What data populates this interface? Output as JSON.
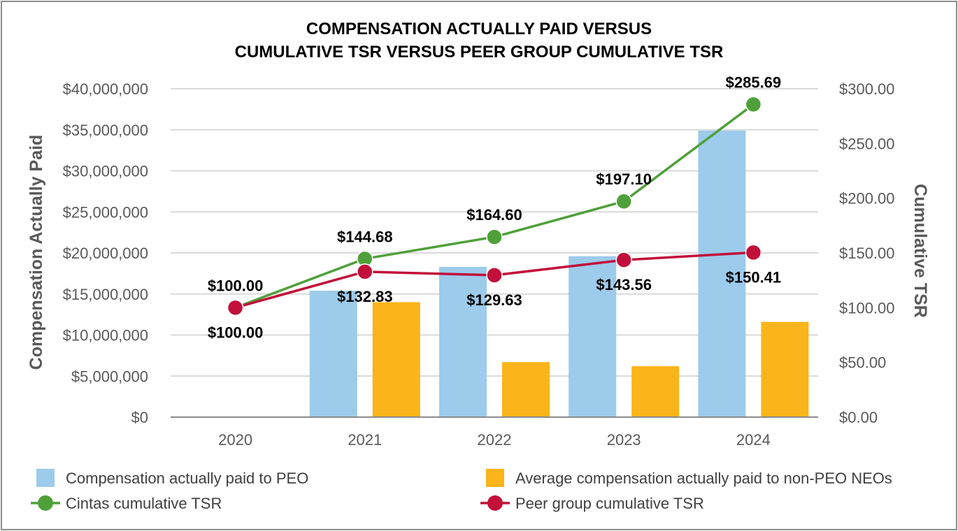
{
  "chart_data": {
    "type": "bar",
    "title_lines": [
      "COMPENSATION ACTUALLY PAID VERSUS",
      "CUMULATIVE TSR VERSUS PEER GROUP CUMULATIVE TSR"
    ],
    "categories": [
      "2020",
      "2021",
      "2022",
      "2023",
      "2024"
    ],
    "ylabel": "Compensation Actually Paid",
    "y2label": "Cumulative TSR",
    "ylim": [
      0,
      40000000
    ],
    "y2lim": [
      0,
      300
    ],
    "y_ticks": [
      0,
      5000000,
      10000000,
      15000000,
      20000000,
      25000000,
      30000000,
      35000000,
      40000000
    ],
    "y_tick_labels": [
      "$0",
      "$5,000,000",
      "$10,000,000",
      "$15,000,000",
      "$20,000,000",
      "$25,000,000",
      "$30,000,000",
      "$35,000,000",
      "$40,000,000"
    ],
    "y2_ticks": [
      0,
      50,
      100,
      150,
      200,
      250,
      300
    ],
    "y2_tick_labels": [
      "$0.00",
      "$50.00",
      "$100.00",
      "$150.00",
      "$200.00",
      "$250.00",
      "$300.00"
    ],
    "grid": true,
    "legend_position": "bottom",
    "bar_series": [
      {
        "name": "Compensation actually paid to PEO",
        "color": "#9dcbeb",
        "values": [
          null,
          15400000,
          18300000,
          19600000,
          34900000
        ]
      },
      {
        "name": "Average compensation actually paid to non-PEO NEOs",
        "color": "#fbb419",
        "values": [
          null,
          14000000,
          6700000,
          6200000,
          11600000
        ]
      }
    ],
    "line_series": [
      {
        "name": "Cintas cumulative TSR",
        "color": "#4fa03a",
        "values": [
          100.0,
          144.68,
          164.6,
          197.1,
          285.69
        ],
        "labels": [
          "$100.00",
          "$144.68",
          "$164.60",
          "$197.10",
          "$285.69"
        ]
      },
      {
        "name": "Peer group cumulative TSR",
        "color": "#c2103a",
        "values": [
          100.0,
          132.83,
          129.63,
          143.56,
          150.41
        ],
        "labels": [
          "$100.00",
          "$132.83",
          "$129.63",
          "$143.56",
          "$150.41"
        ]
      }
    ]
  }
}
